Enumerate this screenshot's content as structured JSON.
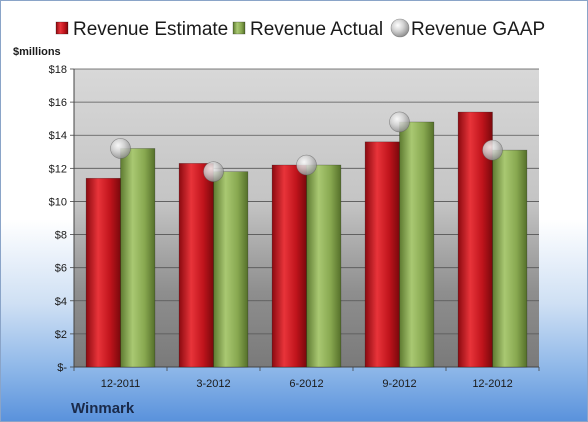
{
  "chart_data": {
    "type": "bar",
    "title": "",
    "unit_label": "$millions",
    "company": "Winmark",
    "categories": [
      "12-2011",
      "3-2012",
      "6-2012",
      "9-2012",
      "12-2012"
    ],
    "y_tick_labels": [
      "$-",
      "$2",
      "$4",
      "$6",
      "$8",
      "$10",
      "$12",
      "$14",
      "$16",
      "$18"
    ],
    "ylim": [
      0,
      18
    ],
    "grid": true,
    "legend_position": "top",
    "series": [
      {
        "name": "Revenue Estimate",
        "kind": "bar",
        "color": "#c0141c",
        "values": [
          11.4,
          12.3,
          12.2,
          13.6,
          15.4
        ]
      },
      {
        "name": "Revenue Actual",
        "kind": "bar",
        "color": "#8aab52",
        "values": [
          13.2,
          11.8,
          12.2,
          14.8,
          13.1
        ]
      },
      {
        "name": "Revenue GAAP",
        "kind": "marker",
        "color": "#b8b8b8",
        "values": [
          13.2,
          11.8,
          12.2,
          14.8,
          13.1
        ]
      }
    ]
  }
}
